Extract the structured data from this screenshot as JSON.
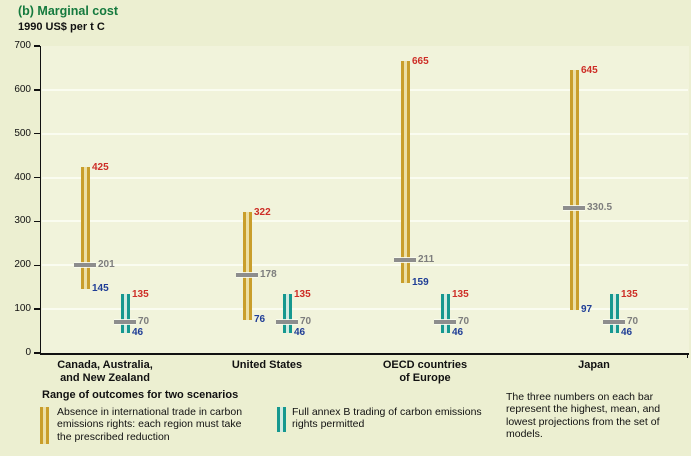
{
  "title": "(b) Marginal cost",
  "subtitle": "1990 US$ per t C",
  "colors": {
    "background": "#ecefd1",
    "plot_background": "#f1f3db",
    "gridline": "#fafcf0",
    "axis": "#111111",
    "title_green": "#157a3e",
    "gold_edge": "#c99e2b",
    "gold_center": "#ecdfa6",
    "teal_edge": "#16988f",
    "teal_center": "#d2eae2",
    "high_red": "#cd2d26",
    "mean_gray": "#7d7d7d",
    "tick_gray": "#8d8d8d",
    "low_blue": "#1f3d96"
  },
  "chart_data": {
    "type": "range-bar",
    "title": "(b) Marginal cost",
    "ylabel": "1990 US$ per t C",
    "ylim": [
      0,
      700
    ],
    "yticks": [
      0,
      100,
      200,
      300,
      400,
      500,
      600,
      700
    ],
    "grid": "horizontal light lines every 100 units",
    "legend_position": "bottom",
    "categories": [
      {
        "key": "canz",
        "label_lines": [
          "Canada, Australia,",
          "and New Zealand"
        ]
      },
      {
        "key": "us",
        "label_lines": [
          "United States"
        ]
      },
      {
        "key": "oecd-europe",
        "label_lines": [
          "OECD countries",
          "of Europe"
        ]
      },
      {
        "key": "japan",
        "label_lines": [
          "Japan"
        ]
      }
    ],
    "series": [
      {
        "key": "absence",
        "name": "Absence in international trade in carbon emissions rights: each region must take the prescribed reduction",
        "color": "#c99e2b",
        "values": [
          {
            "high": 425,
            "mean": 201,
            "low": 145
          },
          {
            "high": 322,
            "mean": 178,
            "low": 76
          },
          {
            "high": 665,
            "mean": 211,
            "low": 159
          },
          {
            "high": 645,
            "mean": 330.5,
            "low": 97
          }
        ]
      },
      {
        "key": "trading",
        "name": "Full annex B trading of carbon emissions rights permitted",
        "color": "#16988f",
        "values": [
          {
            "high": 135,
            "mean": 70,
            "low": 46
          },
          {
            "high": 135,
            "mean": 70,
            "low": 46
          },
          {
            "high": 135,
            "mean": 70,
            "low": 46
          },
          {
            "high": 135,
            "mean": 70,
            "low": 46
          }
        ]
      }
    ],
    "value_label_colors": {
      "high": "#cd2d26",
      "mean": "#7d7d7d",
      "low": "#1f3d96"
    }
  },
  "legend": {
    "heading": "Range of outcomes for two scenarios",
    "items": [
      {
        "key": "absence",
        "lines": [
          "Absence in international trade in carbon",
          "emissions rights: each region must take",
          "the prescribed reduction"
        ]
      },
      {
        "key": "trading",
        "lines": [
          "Full annex B trading of carbon emissions",
          "rights permitted"
        ]
      }
    ]
  },
  "note_lines": [
    "The three numbers on each bar",
    "represent the highest, mean, and",
    "lowest projections from the set of",
    "models."
  ]
}
